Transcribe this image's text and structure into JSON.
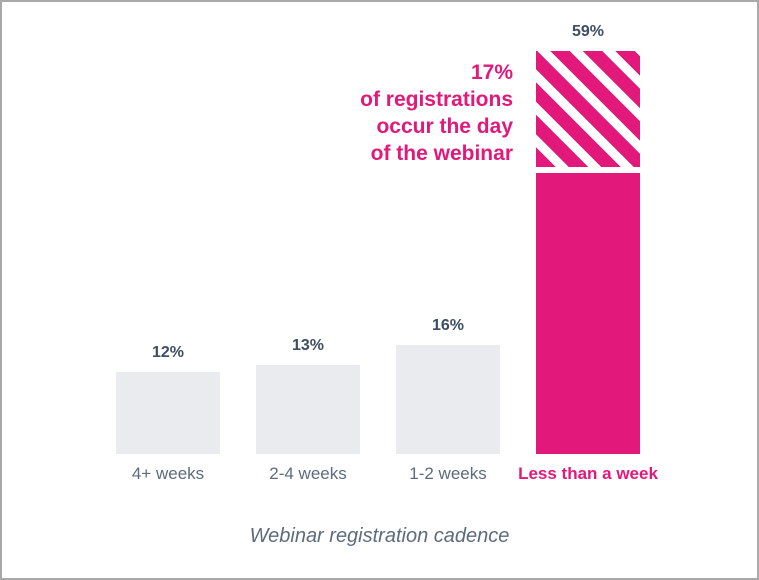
{
  "window": {
    "background_color": "#ffffff",
    "border_color": "#a9a9a9"
  },
  "chart_data": {
    "type": "bar",
    "title": "Webinar registration cadence",
    "categories": [
      "4+ weeks",
      "2-4 weeks",
      "1-2 weeks",
      "Less than a week"
    ],
    "values": [
      12,
      13,
      16,
      59
    ],
    "value_labels": [
      "12%",
      "13%",
      "16%",
      "59%"
    ],
    "value_suffix": "%",
    "ylim": [
      0,
      59
    ],
    "grid": false,
    "legend": false,
    "xlabel": "",
    "ylabel": "",
    "highlight_category": "Less than a week",
    "highlight_split": {
      "striped_value": 17,
      "solid_value": 42,
      "striped_meaning": "registrations occurring the day of the webinar"
    },
    "annotation": {
      "lines": [
        "17%",
        "of registrations",
        "occur the day",
        "of the webinar"
      ],
      "text": "17% of registrations occur the day of the webinar"
    },
    "colors": {
      "bar_default": "#e9ebee",
      "bar_highlight": "#e2197b",
      "value_label": "#3e4e63",
      "category_label": "#5d6b7e",
      "annotation_text": "#e2197b",
      "title_text": "#5d6b7e"
    }
  }
}
